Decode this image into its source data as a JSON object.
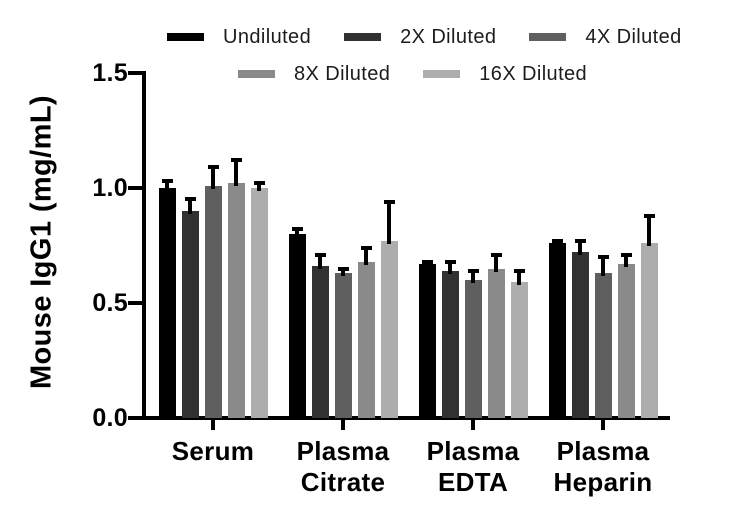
{
  "chart_data": {
    "type": "bar",
    "title": "",
    "ylabel": "Mouse IgG1 (mg/mL)",
    "ylim": [
      0.0,
      1.5
    ],
    "ytick_labels": [
      "0.0",
      "0.5",
      "1.0",
      "1.5"
    ],
    "ytick_values": [
      0.0,
      0.5,
      1.0,
      1.5
    ],
    "grid": false,
    "legend_position": "top",
    "legend_rows": [
      [
        0,
        1,
        2
      ],
      [
        3,
        4
      ]
    ],
    "categories": [
      [
        "Serum"
      ],
      [
        "Plasma",
        "Citrate"
      ],
      [
        "Plasma",
        "EDTA"
      ],
      [
        "Plasma",
        "Heparin"
      ]
    ],
    "series": [
      {
        "name": "Undiluted",
        "color": "#000000",
        "values": [
          1.0,
          0.8,
          0.67,
          0.76
        ],
        "errors": [
          0.03,
          0.02,
          0.01,
          0.01
        ]
      },
      {
        "name": "2X Diluted",
        "color": "#313131",
        "values": [
          0.9,
          0.66,
          0.64,
          0.72
        ],
        "errors": [
          0.05,
          0.05,
          0.04,
          0.05
        ]
      },
      {
        "name": "4X Diluted",
        "color": "#5f5f5f",
        "values": [
          1.01,
          0.63,
          0.6,
          0.63
        ],
        "errors": [
          0.08,
          0.02,
          0.04,
          0.07
        ]
      },
      {
        "name": "8X Diluted",
        "color": "#8a8a8a",
        "values": [
          1.02,
          0.68,
          0.65,
          0.67
        ],
        "errors": [
          0.1,
          0.06,
          0.06,
          0.04
        ]
      },
      {
        "name": "16X Diluted",
        "color": "#adadad",
        "values": [
          1.0,
          0.77,
          0.59,
          0.76
        ],
        "errors": [
          0.02,
          0.17,
          0.05,
          0.12
        ]
      }
    ],
    "colors": {
      "axis": "#000000",
      "text": "#000000",
      "legend_text": "#1c1c1c",
      "background": "#ffffff"
    }
  }
}
